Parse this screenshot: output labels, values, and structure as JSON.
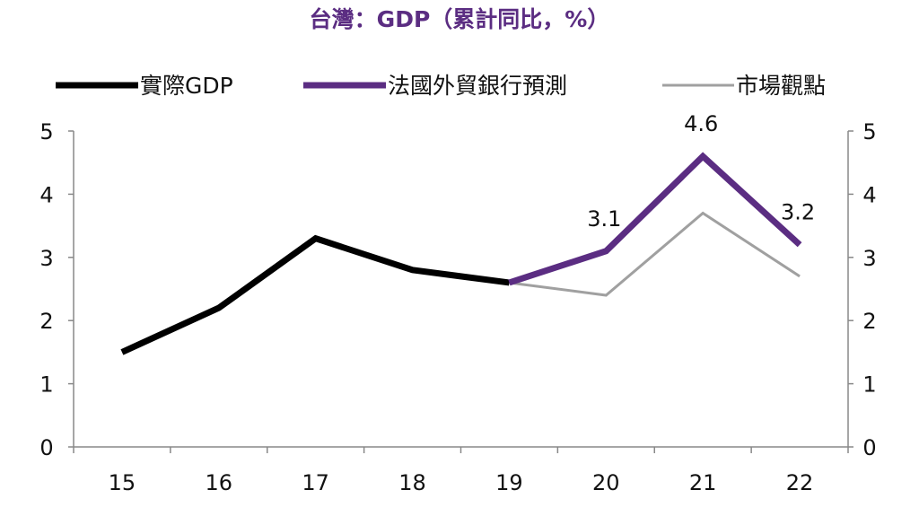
{
  "chart_data": {
    "type": "line",
    "title": "台灣：GDP（累計同比，%）",
    "categories": [
      "15",
      "16",
      "17",
      "18",
      "19",
      "20",
      "21",
      "22"
    ],
    "ylim": [
      0,
      5
    ],
    "yticks": [
      0,
      1,
      2,
      3,
      4,
      5
    ],
    "y2lim": [
      0,
      5
    ],
    "grid": false,
    "legend_position": "top",
    "series": [
      {
        "name": "實際GDP",
        "color": "#000000",
        "values": [
          1.5,
          2.2,
          3.3,
          2.8,
          2.6,
          null,
          null,
          null
        ]
      },
      {
        "name": "法國外貿銀行預測",
        "color": "#5b2d82",
        "values": [
          null,
          null,
          null,
          null,
          2.6,
          3.1,
          4.6,
          3.2
        ],
        "data_labels": [
          null,
          null,
          null,
          null,
          null,
          "3.1",
          "4.6",
          "3.2"
        ]
      },
      {
        "name": "市場觀點",
        "color": "#a0a0a0",
        "values": [
          null,
          null,
          null,
          null,
          2.6,
          2.4,
          3.7,
          2.7
        ]
      }
    ]
  }
}
